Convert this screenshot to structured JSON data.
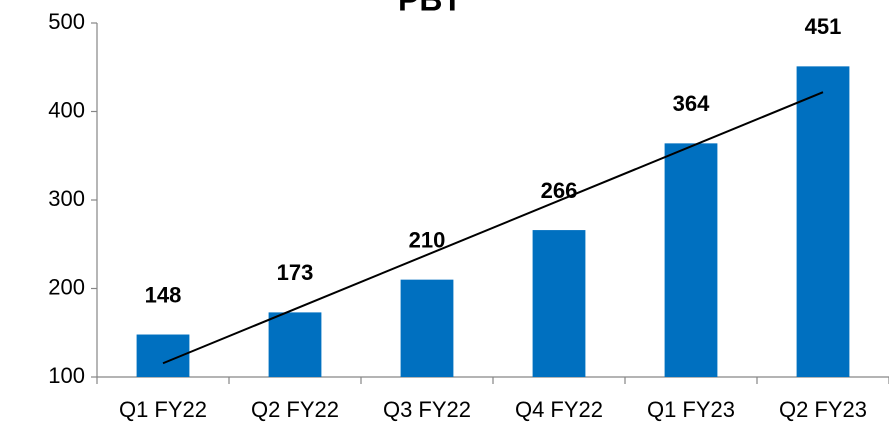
{
  "chart_data": {
    "type": "bar",
    "title": "PBT",
    "categories": [
      "Q1 FY22",
      "Q2 FY22",
      "Q3 FY22",
      "Q4 FY22",
      "Q1 FY23",
      "Q2 FY23"
    ],
    "values": [
      148,
      173,
      210,
      266,
      364,
      451
    ],
    "color": "#0070c0",
    "ylim": [
      100,
      500
    ],
    "yticks": [
      100,
      200,
      300,
      400,
      500
    ],
    "grid": false,
    "trendline": true
  }
}
